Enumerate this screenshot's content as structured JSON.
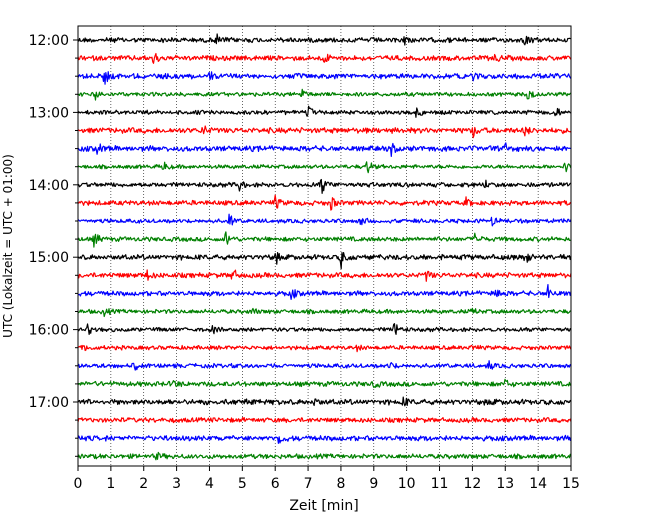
{
  "chart_data": {
    "type": "line",
    "title": "",
    "xlabel": "Zeit  [min]",
    "ylabel": "UTC (Lokalzeit = UTC + 01:00)",
    "xlim": [
      0,
      15
    ],
    "x_ticks": [
      "0",
      "1",
      "2",
      "3",
      "4",
      "5",
      "6",
      "7",
      "8",
      "9",
      "10",
      "11",
      "12",
      "13",
      "14",
      "15"
    ],
    "y_ticks": [
      "12:00",
      "13:00",
      "14:00",
      "15:00",
      "16:00",
      "17:00"
    ],
    "grid": "vertical-dotted",
    "legend": "none",
    "colors": [
      "#000000",
      "#ff0000",
      "#0000ff",
      "#008000"
    ],
    "traces": [
      {
        "start": "12:00",
        "color": "#000000",
        "events": [
          [
            4.2,
            0.5
          ],
          [
            9.9,
            0.35
          ],
          [
            13.6,
            0.3
          ]
        ]
      },
      {
        "start": "12:15",
        "color": "#ff0000",
        "events": [
          [
            2.3,
            0.5
          ],
          [
            7.5,
            0.4
          ],
          [
            12.7,
            0.3
          ]
        ]
      },
      {
        "start": "12:30",
        "color": "#0000ff",
        "events": [
          [
            0.8,
            0.6
          ],
          [
            4.0,
            0.3
          ],
          [
            12.0,
            0.3
          ]
        ]
      },
      {
        "start": "12:45",
        "color": "#008000",
        "events": [
          [
            0.5,
            0.6
          ],
          [
            6.8,
            0.4
          ],
          [
            13.7,
            0.6
          ]
        ]
      },
      {
        "start": "13:00",
        "color": "#000000",
        "events": [
          [
            7.0,
            0.5
          ],
          [
            10.3,
            0.4
          ],
          [
            14.5,
            0.6
          ]
        ]
      },
      {
        "start": "13:15",
        "color": "#ff0000",
        "events": [
          [
            3.8,
            0.4
          ],
          [
            12.0,
            0.5
          ],
          [
            13.6,
            0.4
          ]
        ]
      },
      {
        "start": "13:30",
        "color": "#0000ff",
        "events": [
          [
            0.6,
            0.4
          ],
          [
            9.5,
            0.5
          ],
          [
            13.0,
            0.3
          ]
        ]
      },
      {
        "start": "13:45",
        "color": "#008000",
        "events": [
          [
            2.6,
            0.35
          ],
          [
            8.8,
            0.6
          ],
          [
            14.8,
            0.5
          ]
        ]
      },
      {
        "start": "14:00",
        "color": "#000000",
        "events": [
          [
            4.9,
            0.4
          ],
          [
            7.4,
            0.8
          ],
          [
            12.4,
            0.3
          ]
        ]
      },
      {
        "start": "14:15",
        "color": "#ff0000",
        "events": [
          [
            6.0,
            0.5
          ],
          [
            7.7,
            0.5
          ],
          [
            11.8,
            0.3
          ]
        ]
      },
      {
        "start": "14:30",
        "color": "#0000ff",
        "events": [
          [
            4.6,
            0.5
          ],
          [
            8.6,
            0.3
          ],
          [
            12.6,
            0.3
          ]
        ]
      },
      {
        "start": "14:45",
        "color": "#008000",
        "events": [
          [
            0.5,
            0.6
          ],
          [
            4.5,
            0.6
          ],
          [
            12.1,
            0.6
          ]
        ]
      },
      {
        "start": "15:00",
        "color": "#000000",
        "events": [
          [
            6.0,
            0.5
          ],
          [
            8.0,
            0.7
          ],
          [
            13.6,
            0.5
          ]
        ]
      },
      {
        "start": "15:15",
        "color": "#ff0000",
        "events": [
          [
            2.1,
            0.35
          ],
          [
            4.7,
            0.5
          ],
          [
            10.6,
            0.4
          ]
        ]
      },
      {
        "start": "15:30",
        "color": "#0000ff",
        "events": [
          [
            6.5,
            0.4
          ],
          [
            12.7,
            0.5
          ],
          [
            14.3,
            0.7
          ]
        ]
      },
      {
        "start": "15:45",
        "color": "#008000",
        "events": [
          [
            0.8,
            0.3
          ],
          [
            5.3,
            0.25
          ],
          [
            12.0,
            0.25
          ]
        ]
      },
      {
        "start": "16:00",
        "color": "#000000",
        "events": [
          [
            0.3,
            0.4
          ],
          [
            4.1,
            0.3
          ],
          [
            9.6,
            0.8
          ]
        ]
      },
      {
        "start": "16:15",
        "color": "#ff0000",
        "events": [
          [
            0.2,
            0.25
          ],
          [
            8.5,
            0.2
          ],
          [
            12.0,
            0.2
          ]
        ]
      },
      {
        "start": "16:30",
        "color": "#0000ff",
        "events": [
          [
            1.7,
            0.35
          ],
          [
            9.5,
            0.3
          ],
          [
            12.5,
            0.3
          ]
        ]
      },
      {
        "start": "16:45",
        "color": "#008000",
        "events": [
          [
            2.9,
            0.35
          ],
          [
            9.0,
            0.3
          ],
          [
            13.0,
            0.3
          ]
        ]
      },
      {
        "start": "17:00",
        "color": "#000000",
        "events": [
          [
            7.2,
            0.25
          ],
          [
            9.9,
            0.3
          ],
          [
            12.5,
            0.2
          ]
        ]
      },
      {
        "start": "17:15",
        "color": "#ff0000",
        "events": []
      },
      {
        "start": "17:30",
        "color": "#0000ff",
        "events": [
          [
            6.1,
            0.45
          ]
        ]
      },
      {
        "start": "17:45",
        "color": "#008000",
        "events": [
          [
            2.4,
            0.25
          ]
        ]
      }
    ]
  }
}
